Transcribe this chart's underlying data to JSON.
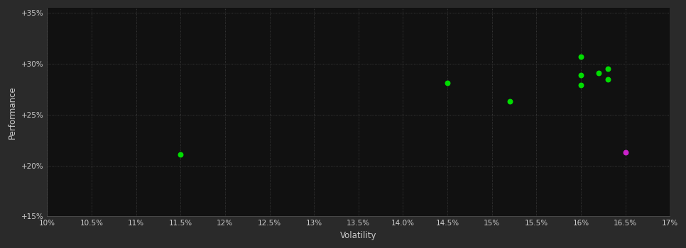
{
  "background_color": "#2a2a2a",
  "plot_bg_color": "#111111",
  "grid_color": "#444444",
  "text_color": "#cccccc",
  "xlabel": "Volatility",
  "ylabel": "Performance",
  "xlim": [
    0.1,
    0.17
  ],
  "ylim": [
    0.15,
    0.355
  ],
  "xticks": [
    0.1,
    0.105,
    0.11,
    0.115,
    0.12,
    0.125,
    0.13,
    0.135,
    0.14,
    0.145,
    0.15,
    0.155,
    0.16,
    0.165,
    0.17
  ],
  "yticks": [
    0.15,
    0.2,
    0.25,
    0.3,
    0.35
  ],
  "points_green": [
    [
      0.115,
      0.211
    ],
    [
      0.145,
      0.281
    ],
    [
      0.152,
      0.263
    ],
    [
      0.16,
      0.307
    ],
    [
      0.16,
      0.289
    ],
    [
      0.16,
      0.279
    ],
    [
      0.162,
      0.291
    ],
    [
      0.163,
      0.285
    ],
    [
      0.163,
      0.295
    ]
  ],
  "points_magenta": [
    [
      0.165,
      0.213
    ]
  ],
  "point_size": 22,
  "green_color": "#00dd00",
  "magenta_color": "#cc22cc"
}
